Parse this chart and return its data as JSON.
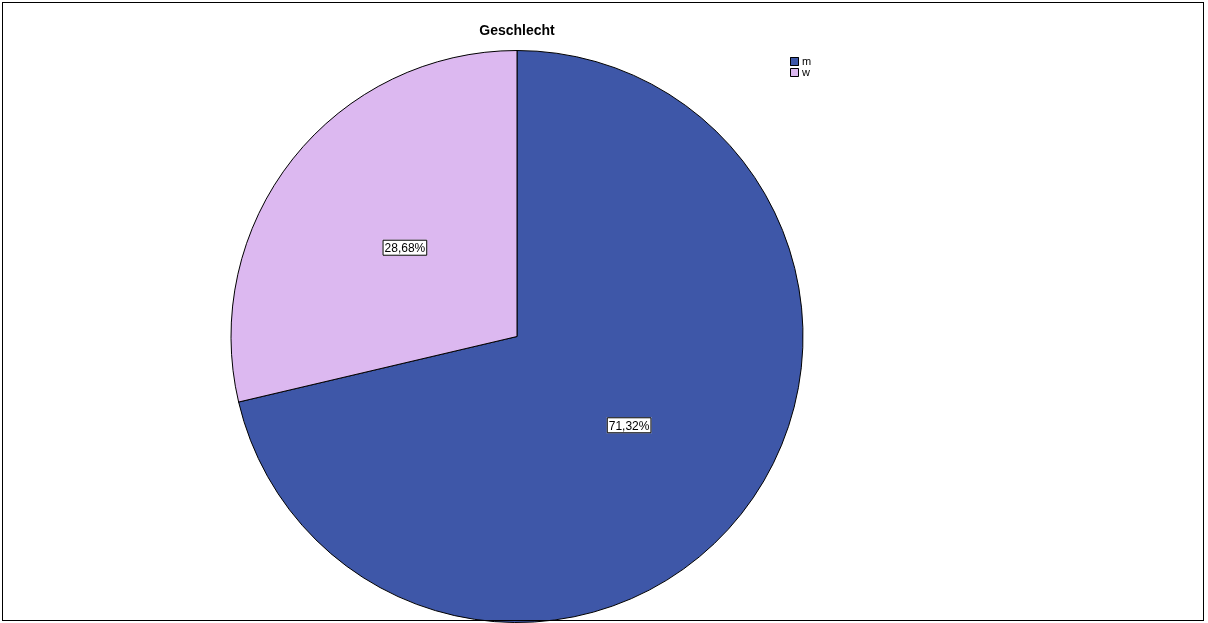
{
  "chart_data": {
    "type": "pie",
    "title": "Geschlecht",
    "categories": [
      "m",
      "w"
    ],
    "values": [
      71.32,
      28.68
    ],
    "colors": [
      "#3e57a8",
      "#dcb8f0"
    ],
    "value_labels": [
      "71,32%",
      "28,68%"
    ],
    "legend": "top right"
  }
}
